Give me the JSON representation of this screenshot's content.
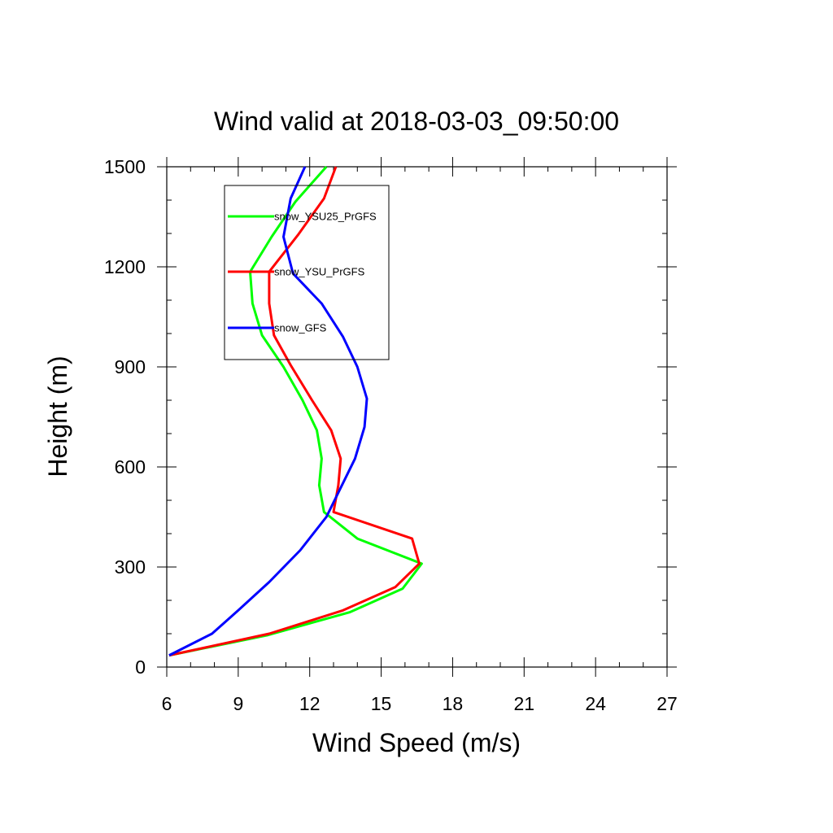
{
  "chart_data": {
    "type": "line",
    "title": "Wind valid at 2018-03-03_09:50:00",
    "xlabel": "Wind Speed (m/s)",
    "ylabel": "Height (m)",
    "xlim": [
      6,
      27
    ],
    "ylim": [
      0,
      1500
    ],
    "xticks": [
      6,
      9,
      12,
      15,
      18,
      21,
      24,
      27
    ],
    "yticks": [
      0,
      300,
      600,
      900,
      1200,
      1500
    ],
    "legend_position": "top-left",
    "grid": false,
    "series": [
      {
        "name": "snow_YSU25_PrGFS",
        "color": "#00ff00",
        "points": [
          [
            6.1,
            35
          ],
          [
            10.2,
            95
          ],
          [
            13.7,
            165
          ],
          [
            15.9,
            235
          ],
          [
            16.7,
            310
          ],
          [
            14.0,
            385
          ],
          [
            12.6,
            465
          ],
          [
            12.4,
            545
          ],
          [
            12.5,
            625
          ],
          [
            12.3,
            710
          ],
          [
            11.7,
            800
          ],
          [
            10.9,
            900
          ],
          [
            10.0,
            995
          ],
          [
            9.6,
            1090
          ],
          [
            9.5,
            1185
          ],
          [
            10.4,
            1290
          ],
          [
            11.4,
            1395
          ],
          [
            12.7,
            1500
          ]
        ]
      },
      {
        "name": "snow_YSU_PrGFS",
        "color": "#ff0000",
        "points": [
          [
            6.1,
            35
          ],
          [
            10.3,
            100
          ],
          [
            13.4,
            170
          ],
          [
            15.6,
            240
          ],
          [
            16.6,
            310
          ],
          [
            16.3,
            385
          ],
          [
            13.0,
            465
          ],
          [
            13.2,
            545
          ],
          [
            13.3,
            625
          ],
          [
            12.9,
            710
          ],
          [
            12.1,
            800
          ],
          [
            11.2,
            905
          ],
          [
            10.5,
            995
          ],
          [
            10.3,
            1090
          ],
          [
            10.3,
            1185
          ],
          [
            11.5,
            1295
          ],
          [
            12.6,
            1405
          ],
          [
            13.1,
            1500
          ]
        ]
      },
      {
        "name": "snow_GFS",
        "color": "#0000ff",
        "points": [
          [
            6.1,
            35
          ],
          [
            7.9,
            100
          ],
          [
            9.0,
            170
          ],
          [
            10.3,
            255
          ],
          [
            11.6,
            350
          ],
          [
            12.7,
            450
          ],
          [
            13.9,
            625
          ],
          [
            14.3,
            720
          ],
          [
            14.4,
            805
          ],
          [
            14.0,
            900
          ],
          [
            13.4,
            990
          ],
          [
            12.5,
            1090
          ],
          [
            11.3,
            1180
          ],
          [
            10.9,
            1290
          ],
          [
            11.2,
            1405
          ],
          [
            11.8,
            1500
          ]
        ]
      }
    ]
  }
}
